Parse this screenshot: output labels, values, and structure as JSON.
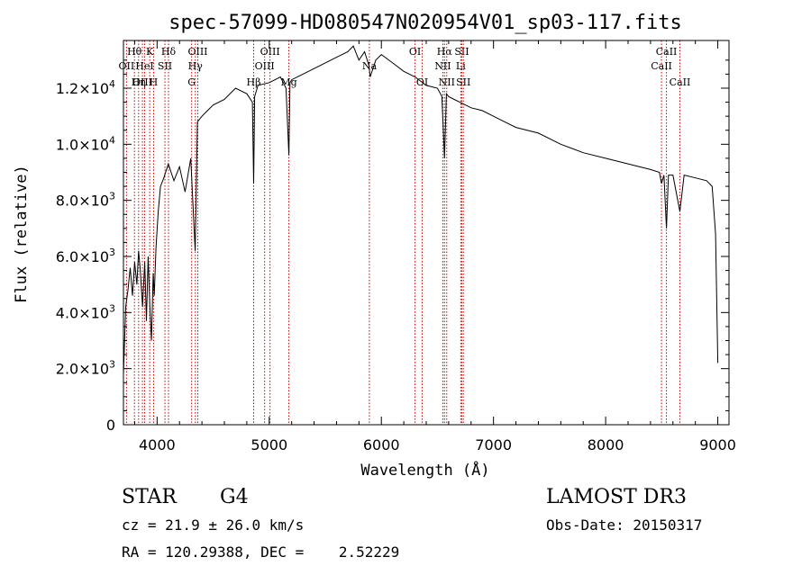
{
  "chart_data": {
    "type": "line",
    "title": "spec-57099-HD080547N020954V01_sp03-117.fits",
    "xlabel": "Wavelength (Å)",
    "ylabel": "Flux (relative)",
    "xlim": [
      3700,
      9100
    ],
    "ylim": [
      0,
      13700
    ],
    "x_ticks": [
      4000,
      5000,
      6000,
      7000,
      8000,
      9000
    ],
    "y_ticks": [
      {
        "value": 0,
        "mantissa": "0",
        "exponent": ""
      },
      {
        "value": 2000,
        "mantissa": "2.0×10",
        "exponent": "3"
      },
      {
        "value": 4000,
        "mantissa": "4.0×10",
        "exponent": "3"
      },
      {
        "value": 6000,
        "mantissa": "6.0×10",
        "exponent": "3"
      },
      {
        "value": 8000,
        "mantissa": "8.0×10",
        "exponent": "3"
      },
      {
        "value": 10000,
        "mantissa": "1.0×10",
        "exponent": "4"
      },
      {
        "value": 12000,
        "mantissa": "1.2×10",
        "exponent": "4"
      }
    ],
    "grid": false,
    "series": [
      {
        "x": [
          3700,
          3720,
          3740,
          3760,
          3780,
          3800,
          3820,
          3835,
          3850,
          3870,
          3890,
          3905,
          3920,
          3935,
          3950,
          3965,
          3975,
          3990,
          4010,
          4030,
          4060,
          4100,
          4150,
          4200,
          4250,
          4300,
          4340,
          4360,
          4400,
          4450,
          4500,
          4600,
          4700,
          4800,
          4850,
          4861,
          4870,
          4900,
          5000,
          5100,
          5150,
          5175,
          5185,
          5200,
          5300,
          5400,
          5500,
          5600,
          5700,
          5750,
          5800,
          5850,
          5890,
          5900,
          5950,
          6000,
          6100,
          6200,
          6300,
          6400,
          6500,
          6540,
          6563,
          6580,
          6600,
          6650,
          6700,
          6800,
          6900,
          7000,
          7100,
          7200,
          7400,
          7600,
          7800,
          8000,
          8200,
          8400,
          8480,
          8498,
          8520,
          8542,
          8560,
          8600,
          8662,
          8700,
          8800,
          8900,
          8950,
          8980,
          9000
        ],
        "y": [
          1800,
          4200,
          4800,
          5600,
          4600,
          5800,
          5000,
          6200,
          5500,
          4200,
          5800,
          3700,
          6000,
          4300,
          3000,
          5400,
          4600,
          6300,
          7600,
          8500,
          8800,
          9300,
          8700,
          9200,
          8300,
          9500,
          6200,
          10800,
          11000,
          11200,
          11400,
          11600,
          12000,
          11800,
          11500,
          8600,
          11700,
          12100,
          12200,
          12400,
          12000,
          9600,
          12200,
          12300,
          12500,
          12700,
          12900,
          13100,
          13300,
          13500,
          13000,
          13300,
          12800,
          12400,
          13000,
          13200,
          12900,
          12600,
          12400,
          12100,
          12000,
          11700,
          9500,
          11800,
          11700,
          11600,
          11500,
          11300,
          11200,
          11000,
          10800,
          10600,
          10400,
          10000,
          9700,
          9500,
          9300,
          9100,
          9000,
          8600,
          8900,
          7000,
          8900,
          8900,
          7600,
          8900,
          8800,
          8700,
          8500,
          6800,
          2200
        ]
      }
    ],
    "line_markers": [
      {
        "label": "Hθ",
        "x": 3798,
        "row": 1
      },
      {
        "label": "OII",
        "x": 3727,
        "row": 2
      },
      {
        "label": "OIII",
        "x": 3869,
        "row": 3
      },
      {
        "label": "K",
        "x": 3934,
        "row": 1
      },
      {
        "label": "HeI",
        "x": 3889,
        "row": 2
      },
      {
        "label": "Hη",
        "x": 3835,
        "row": 3
      },
      {
        "label": "Hδ",
        "x": 4102,
        "row": 1
      },
      {
        "label": "SII",
        "x": 4070,
        "row": 2
      },
      {
        "label": "H",
        "x": 3969,
        "row": 3
      },
      {
        "label": "OIII",
        "x": 4363,
        "row": 1
      },
      {
        "label": "Hγ",
        "x": 4341,
        "row": 2
      },
      {
        "label": "G",
        "x": 4308,
        "row": 3
      },
      {
        "label": "OIII",
        "x": 5007,
        "row": 1
      },
      {
        "label": "OIII",
        "x": 4959,
        "row": 2
      },
      {
        "label": "Hβ",
        "x": 4861,
        "row": 3
      },
      {
        "label": "Mg",
        "x": 5175,
        "row": 3
      },
      {
        "label": "Na",
        "x": 5893,
        "row": 2
      },
      {
        "label": "OI",
        "x": 6300,
        "row": 1
      },
      {
        "label": "OI",
        "x": 6364,
        "row": 3
      },
      {
        "label": "Hα",
        "x": 6563,
        "row": 1
      },
      {
        "label": "NII",
        "x": 6548,
        "row": 2
      },
      {
        "label": "NII",
        "x": 6583,
        "row": 3
      },
      {
        "label": "SII",
        "x": 6717,
        "row": 1
      },
      {
        "label": "Li",
        "x": 6708,
        "row": 2
      },
      {
        "label": "SII",
        "x": 6731,
        "row": 3
      },
      {
        "label": "CaII",
        "x": 8542,
        "row": 1
      },
      {
        "label": "CaII",
        "x": 8498,
        "row": 2
      },
      {
        "label": "CaII",
        "x": 8662,
        "row": 3
      }
    ]
  },
  "info": {
    "object_class": "STAR",
    "subclass": "G4",
    "survey": "LAMOST DR3",
    "cz": "cz = 21.9 ± 26.0 km/s",
    "obs_date": "Obs-Date: 20150317",
    "coords": "RA = 120.29388, DEC =    2.52229"
  },
  "colors": {
    "marker": "#cc0000",
    "line": "#000000"
  }
}
